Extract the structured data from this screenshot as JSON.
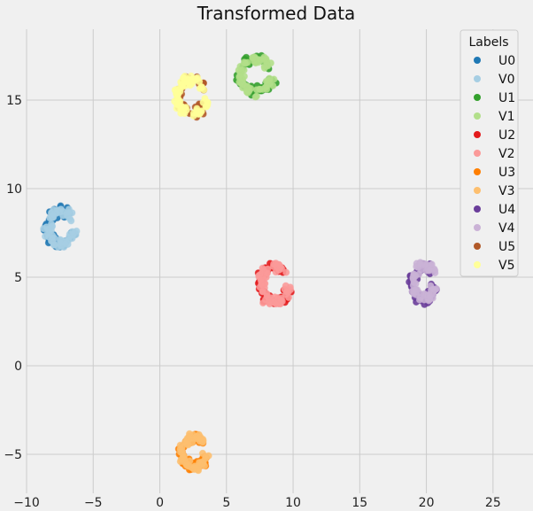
{
  "chart_data": {
    "type": "scatter",
    "title": "Transformed Data",
    "xlabel": "",
    "ylabel": "",
    "xlim": [
      -10,
      28
    ],
    "ylim": [
      -7.2,
      19
    ],
    "x_ticks": [
      -10,
      -5,
      0,
      5,
      10,
      15,
      20,
      25
    ],
    "y_ticks": [
      -5,
      0,
      5,
      10,
      15
    ],
    "grid": true,
    "legend": {
      "title": "Labels",
      "placement": "top-right",
      "entries": [
        {
          "label": "U0",
          "color": "#1f78b4"
        },
        {
          "label": "V0",
          "color": "#a6cee3"
        },
        {
          "label": "U1",
          "color": "#33a02c"
        },
        {
          "label": "V1",
          "color": "#b2df8a"
        },
        {
          "label": "U2",
          "color": "#e31a1c"
        },
        {
          "label": "V2",
          "color": "#fb9a99"
        },
        {
          "label": "U3",
          "color": "#ff7f00"
        },
        {
          "label": "V3",
          "color": "#fdbf6f"
        },
        {
          "label": "U4",
          "color": "#6a3d9a"
        },
        {
          "label": "V4",
          "color": "#cab2d6"
        },
        {
          "label": "U5",
          "color": "#b15928"
        },
        {
          "label": "V5",
          "color": "#ffff99"
        }
      ]
    },
    "series": [
      {
        "name": "U0",
        "color": "#1f78b4",
        "cluster": {
          "cx": -7.4,
          "cy": 7.8,
          "rx": 1.1,
          "ry": 1.0,
          "n": 60
        }
      },
      {
        "name": "V0",
        "color": "#a6cee3",
        "cluster": {
          "cx": -7.4,
          "cy": 7.8,
          "rx": 1.1,
          "ry": 1.0,
          "n": 70
        }
      },
      {
        "name": "U1",
        "color": "#33a02c",
        "cluster": {
          "cx": 7.2,
          "cy": 16.4,
          "rx": 1.3,
          "ry": 1.0,
          "n": 60
        }
      },
      {
        "name": "V1",
        "color": "#b2df8a",
        "cluster": {
          "cx": 7.2,
          "cy": 16.4,
          "rx": 1.3,
          "ry": 1.0,
          "n": 70
        }
      },
      {
        "name": "U2",
        "color": "#e31a1c",
        "cluster": {
          "cx": 8.6,
          "cy": 4.6,
          "rx": 1.1,
          "ry": 1.1,
          "n": 60
        }
      },
      {
        "name": "V2",
        "color": "#fb9a99",
        "cluster": {
          "cx": 8.6,
          "cy": 4.6,
          "rx": 1.1,
          "ry": 1.1,
          "n": 70
        }
      },
      {
        "name": "U3",
        "color": "#ff7f00",
        "cluster": {
          "cx": 2.6,
          "cy": -4.9,
          "rx": 1.0,
          "ry": 0.9,
          "n": 60
        }
      },
      {
        "name": "V3",
        "color": "#fdbf6f",
        "cluster": {
          "cx": 2.6,
          "cy": -4.9,
          "rx": 1.0,
          "ry": 0.9,
          "n": 70
        }
      },
      {
        "name": "U4",
        "color": "#6a3d9a",
        "cluster": {
          "cx": 19.8,
          "cy": 4.7,
          "rx": 0.9,
          "ry": 1.0,
          "n": 60
        }
      },
      {
        "name": "V4",
        "color": "#cab2d6",
        "cluster": {
          "cx": 19.8,
          "cy": 4.7,
          "rx": 0.9,
          "ry": 1.0,
          "n": 70
        }
      },
      {
        "name": "U5",
        "color": "#b15928",
        "cluster": {
          "cx": 2.4,
          "cy": 15.2,
          "rx": 1.0,
          "ry": 1.0,
          "n": 40
        }
      },
      {
        "name": "V5",
        "color": "#ffff99",
        "cluster": {
          "cx": 2.4,
          "cy": 15.2,
          "rx": 1.2,
          "ry": 1.0,
          "n": 70
        }
      }
    ]
  }
}
